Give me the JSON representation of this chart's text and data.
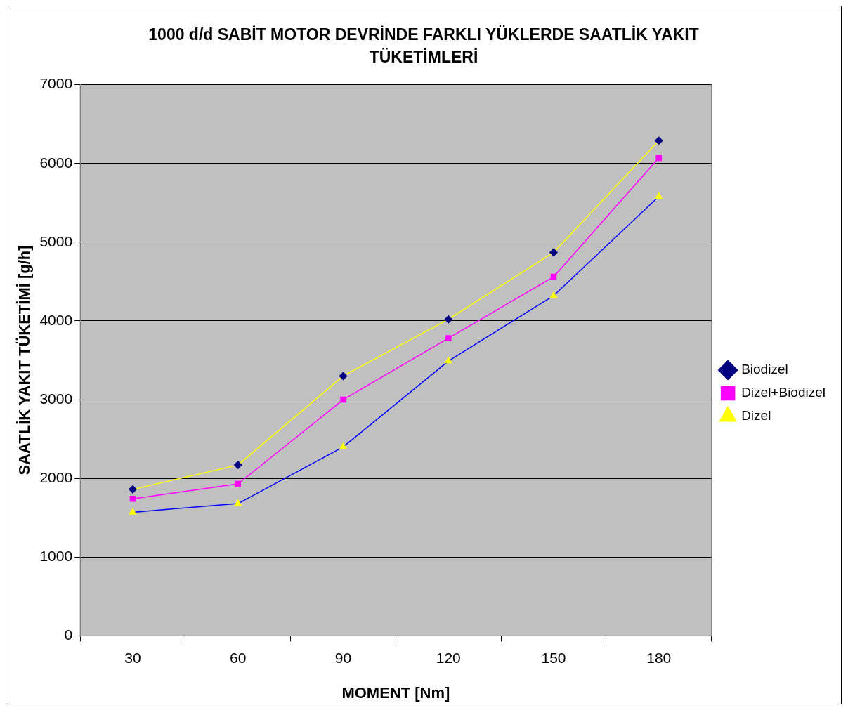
{
  "chart_data": {
    "type": "line",
    "title": "1000 d/d SABİT MOTOR DEVRİNDE FARKLI YÜKLERDE SAATLİK YAKIT TÜKETİMLERİ",
    "xlabel": "MOMENT [Nm]",
    "ylabel": "SAATLİK YAKIT TÜKETİMİ [g/h]",
    "categories": [
      "30",
      "60",
      "90",
      "120",
      "150",
      "180"
    ],
    "series": [
      {
        "name": "Biodizel",
        "color": "#ffff00",
        "marker": "diamond",
        "colors": [
          "#000080",
          "#000080",
          "#000080",
          "#000080",
          "#000080",
          "#000080"
        ],
        "values": [
          1860,
          2170,
          3300,
          4020,
          4870,
          6290
        ]
      },
      {
        "name": "Dizel+Biodizel",
        "color": "#ff00ff",
        "marker": "square",
        "colors": [
          "#ff00ff",
          "#ff00ff",
          "#ff00ff",
          "#ff00ff",
          "#ff00ff",
          "#ff00ff"
        ],
        "values": [
          1740,
          1930,
          3000,
          3780,
          4560,
          6070
        ]
      },
      {
        "name": "Dizel",
        "color": "#0000ff",
        "marker": "triangle",
        "colors": [
          "#ffff00",
          "#ffff00",
          "#ffff00",
          "#ffff00",
          "#ffff00",
          "#ffff00"
        ],
        "values": [
          1570,
          1680,
          2400,
          3490,
          4320,
          5580
        ]
      }
    ],
    "ylim": [
      0,
      7000
    ],
    "yticks": [
      0,
      1000,
      2000,
      3000,
      4000,
      5000,
      6000,
      7000
    ],
    "grid": "y",
    "legend": "right"
  }
}
